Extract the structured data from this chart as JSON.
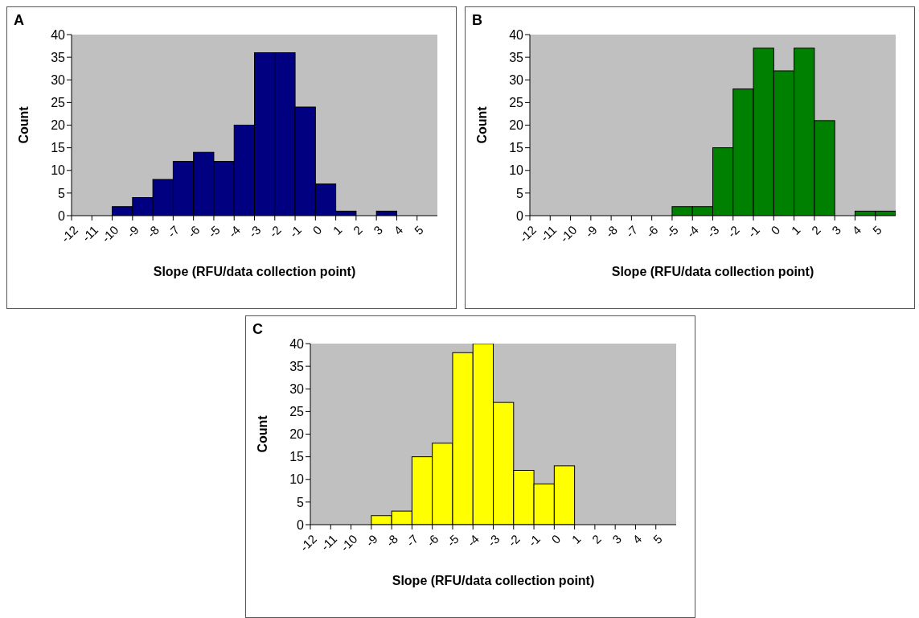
{
  "chart_data": [
    {
      "type": "histogram",
      "title": "A",
      "xlabel": "Slope (RFU/data collection point)",
      "ylabel": "Count",
      "color": "#000080",
      "bins": [
        -12,
        -11,
        -10,
        -9,
        -8,
        -7,
        -6,
        -5,
        -4,
        -3,
        -2,
        -1,
        0,
        1,
        2,
        3,
        4,
        5,
        6
      ],
      "values": [
        0,
        0,
        2,
        4,
        8,
        12,
        14,
        12,
        20,
        36,
        36,
        24,
        7,
        1,
        0,
        1,
        0,
        0
      ],
      "xlim": [
        -12,
        6
      ],
      "xticks": [
        -12,
        -11,
        -10,
        -9,
        -8,
        -7,
        -6,
        -5,
        -4,
        -3,
        -2,
        -1,
        0,
        1,
        2,
        3,
        4,
        5
      ],
      "ylim": [
        0,
        40
      ],
      "yticks": [
        0,
        5,
        10,
        15,
        20,
        25,
        30,
        35,
        40
      ]
    },
    {
      "type": "histogram",
      "title": "B",
      "xlabel": "Slope (RFU/data collection point)",
      "ylabel": "Count",
      "color": "#008000",
      "bins": [
        -12,
        -11,
        -10,
        -9,
        -8,
        -7,
        -6,
        -5,
        -4,
        -3,
        -2,
        -1,
        0,
        1,
        2,
        3,
        4,
        5,
        6
      ],
      "values": [
        0,
        0,
        0,
        0,
        0,
        0,
        0,
        2,
        2,
        15,
        28,
        37,
        32,
        37,
        21,
        0,
        1,
        1
      ],
      "xlim": [
        -12,
        6
      ],
      "xticks": [
        -12,
        -11,
        -10,
        -9,
        -8,
        -7,
        -6,
        -5,
        -4,
        -3,
        -2,
        -1,
        0,
        1,
        2,
        3,
        4,
        5
      ],
      "ylim": [
        0,
        40
      ],
      "yticks": [
        0,
        5,
        10,
        15,
        20,
        25,
        30,
        35,
        40
      ]
    },
    {
      "type": "histogram",
      "title": "C",
      "xlabel": "Slope (RFU/data collection point)",
      "ylabel": "Count",
      "color": "#ffff00",
      "bins": [
        -12,
        -11,
        -10,
        -9,
        -8,
        -7,
        -6,
        -5,
        -4,
        -3,
        -2,
        -1,
        0,
        1,
        2,
        3,
        4,
        5,
        6
      ],
      "values": [
        0,
        0,
        0,
        2,
        3,
        15,
        18,
        38,
        40,
        27,
        12,
        9,
        13,
        0,
        0,
        0,
        0,
        0
      ],
      "xlim": [
        -12,
        6
      ],
      "xticks": [
        -12,
        -11,
        -10,
        -9,
        -8,
        -7,
        -6,
        -5,
        -4,
        -3,
        -2,
        -1,
        0,
        1,
        2,
        3,
        4,
        5
      ],
      "ylim": [
        0,
        40
      ],
      "yticks": [
        0,
        5,
        10,
        15,
        20,
        25,
        30,
        35,
        40
      ]
    }
  ]
}
